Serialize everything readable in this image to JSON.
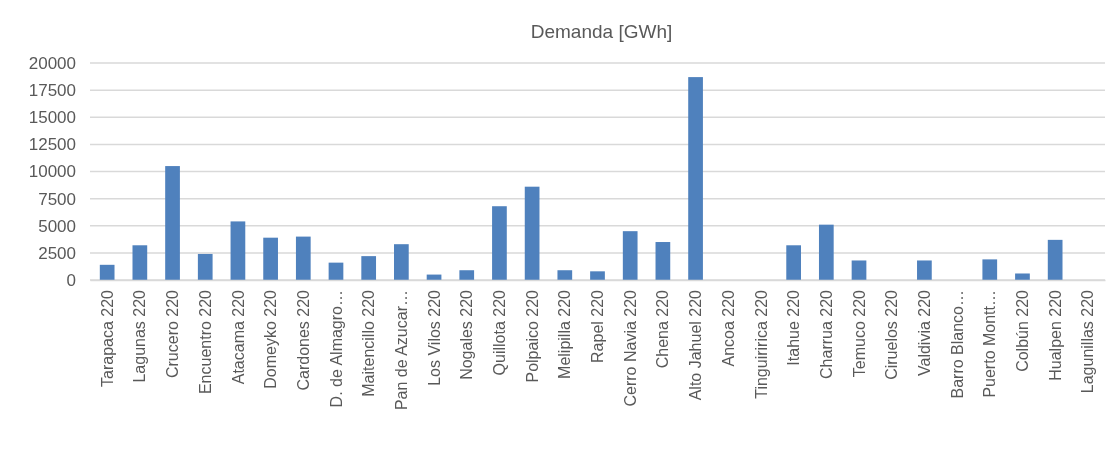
{
  "chart_data": {
    "type": "bar",
    "title": "Demanda [GWh]",
    "categories": [
      "Tarapaca 220",
      "Lagunas 220",
      "Crucero 220",
      "Encuentro 220",
      "Atacama 220",
      "Domeyko 220",
      "Cardones 220",
      "D. de Almagro…",
      "Maitencillo 220",
      "Pan de Azucar…",
      "Los Vilos 220",
      "Nogales 220",
      "Quillota 220",
      "Polpaico 220",
      "Melipilla 220",
      "Rapel 220",
      "Cerro Navia 220",
      "Chena 220",
      "Alto Jahuel 220",
      "Ancoa 220",
      "Tinguiririca 220",
      "Itahue 220",
      "Charrua 220",
      "Temuco 220",
      "Ciruelos 220",
      "Valdivia 220",
      "Barro Blanco…",
      "Puerto Montt…",
      "Colbún 220",
      "Hualpen 220",
      "Lagunillas 220"
    ],
    "values": [
      1400,
      3200,
      10500,
      2400,
      5400,
      3900,
      4000,
      1600,
      2200,
      3300,
      500,
      900,
      6800,
      8600,
      900,
      800,
      4500,
      3500,
      18700,
      0,
      0,
      3200,
      5100,
      1800,
      0,
      1800,
      0,
      1900,
      600,
      3700,
      0
    ],
    "color": "#4f81bd",
    "ylim": [
      0,
      20000
    ],
    "yticks": [
      0,
      2500,
      5000,
      7500,
      10000,
      12500,
      15000,
      17500,
      20000
    ],
    "grid": "y"
  }
}
